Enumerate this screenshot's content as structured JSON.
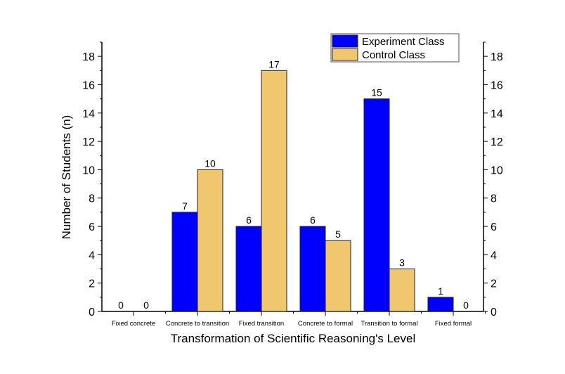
{
  "chart_data": {
    "type": "bar",
    "title": "",
    "xlabel": "Transformation of Scientific Reasoning's Level",
    "ylabel": "Number of Students (n)",
    "ylim": [
      0,
      19
    ],
    "yticks": [
      0,
      2,
      4,
      6,
      8,
      10,
      12,
      14,
      16,
      18
    ],
    "categories": [
      "Fixed concrete",
      "Concrete to transition",
      "Fixed transition",
      "Concrete to formal",
      "Transition to formal",
      "Fixed formal"
    ],
    "series": [
      {
        "name": "Experiment Class",
        "color": "#0000FF",
        "values": [
          0,
          7,
          6,
          6,
          15,
          1
        ]
      },
      {
        "name": "Control Class",
        "color": "#F0C76E",
        "values": [
          0,
          10,
          17,
          5,
          3,
          0
        ]
      }
    ],
    "legend_position": "top-right",
    "grid": false
  }
}
